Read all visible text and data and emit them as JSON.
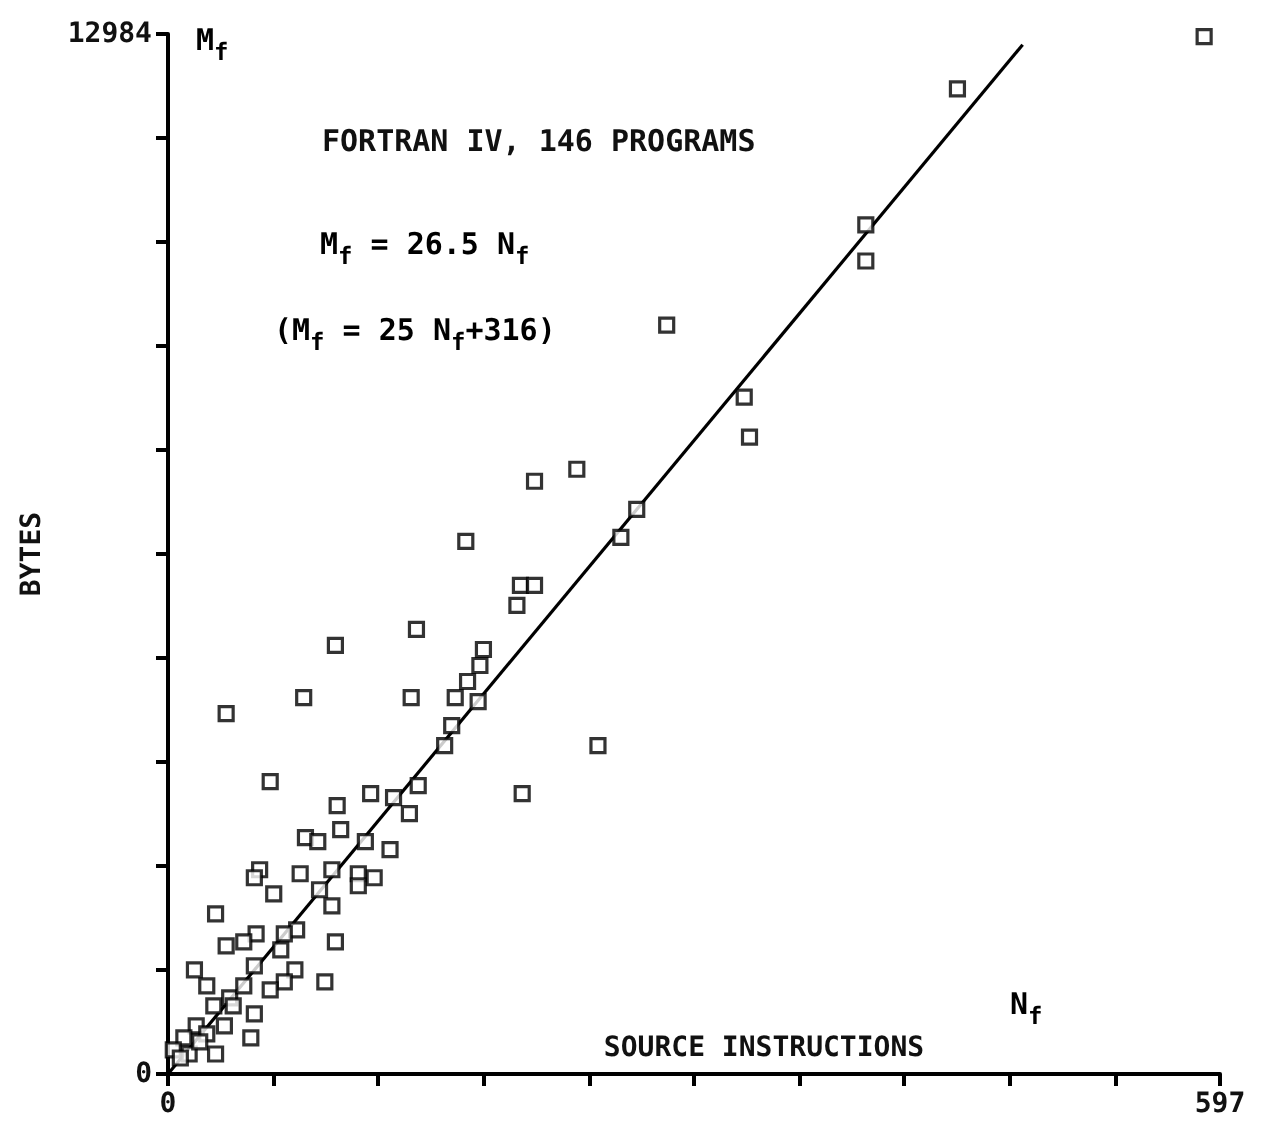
{
  "chart_data": {
    "type": "scatter",
    "title": "FORTRAN IV, 146 PROGRAMS",
    "xlabel": "SOURCE INSTRUCTIONS",
    "ylabel": "BYTES",
    "annotations": [
      "M$_{f}$ = 26.5 N$_{f}$",
      "(M$_{f}$ = 25 N$_{f}$+316)",
      "M$_{f}$",
      "N$_{f}$"
    ],
    "xlim": [
      0,
      597
    ],
    "ylim": [
      0,
      12984
    ],
    "xticks": [
      0,
      {
        "value": 59.7,
        "label": null
      },
      {
        "value": 119.4,
        "label": null
      },
      {
        "value": 179.1,
        "label": null
      },
      {
        "value": 238.8,
        "label": null
      },
      {
        "value": 298.5,
        "label": null
      },
      {
        "value": 358.2,
        "label": null
      },
      {
        "value": 417.9,
        "label": null
      },
      {
        "value": 477.6,
        "label": null
      },
      {
        "value": 537.3,
        "label": null
      },
      597
    ],
    "yticks": [
      0,
      {
        "value": 1298.4,
        "label": null
      },
      {
        "value": 2596.8,
        "label": null
      },
      {
        "value": 3895.2,
        "label": null
      },
      {
        "value": 5193.6,
        "label": null
      },
      {
        "value": 6492,
        "label": null
      },
      {
        "value": 7790.4,
        "label": null
      },
      {
        "value": 9088.8,
        "label": null
      },
      {
        "value": 10387.2,
        "label": null
      },
      {
        "value": 11685.6,
        "label": null
      },
      12984
    ],
    "grid": false,
    "marker": "square",
    "series": [
      {
        "color": "#000000",
        "x": [
          588,
          448,
          396,
          396,
          283,
          327,
          330,
          232,
          208,
          266,
          257,
          169,
          200,
          208,
          198,
          95,
          141,
          179,
          177,
          170,
          163,
          176,
          77,
          138,
          33,
          161,
          157,
          244,
          58,
          115,
          128,
          142,
          137,
          201,
          96,
          98,
          78,
          85,
          112,
          126,
          52,
          49,
          75,
          93,
          108,
          117,
          108,
          60,
          93,
          86,
          27,
          73,
          66,
          95,
          50,
          43,
          33,
          64,
          49,
          72,
          89,
          15,
          66,
          58,
          22,
          35,
          49,
          47,
          32,
          16,
          9,
          3,
          12,
          27,
          22,
          37,
          7,
          18,
          26,
          43
        ],
        "values": [
          12950,
          12300,
          10600,
          10150,
          9350,
          8450,
          7950,
          7550,
          7400,
          7050,
          6700,
          6650,
          6100,
          6100,
          5850,
          5350,
          5550,
          5300,
          5100,
          4900,
          4700,
          4650,
          4700,
          4700,
          4500,
          4350,
          4100,
          4100,
          3650,
          3500,
          3450,
          3600,
          3250,
          3500,
          3350,
          3050,
          2950,
          2900,
          2900,
          2800,
          2550,
          2450,
          2500,
          2550,
          2500,
          2450,
          2350,
          2250,
          2100,
          2300,
          2000,
          1800,
          1750,
          1650,
          1750,
          1650,
          1600,
          1550,
          1350,
          1300,
          1150,
          1300,
          1150,
          1050,
          1100,
          950,
          750,
          450,
          600,
          600,
          450,
          300,
          250,
          250,
          500,
          850,
          200,
          400,
          850,
          1100
        ]
      },
      {
        "type": "line",
        "color": "#000000",
        "marker": "none",
        "line_style": "solid",
        "x": [
          0,
          485
        ],
        "values": [
          0,
          12850
        ]
      }
    ]
  }
}
